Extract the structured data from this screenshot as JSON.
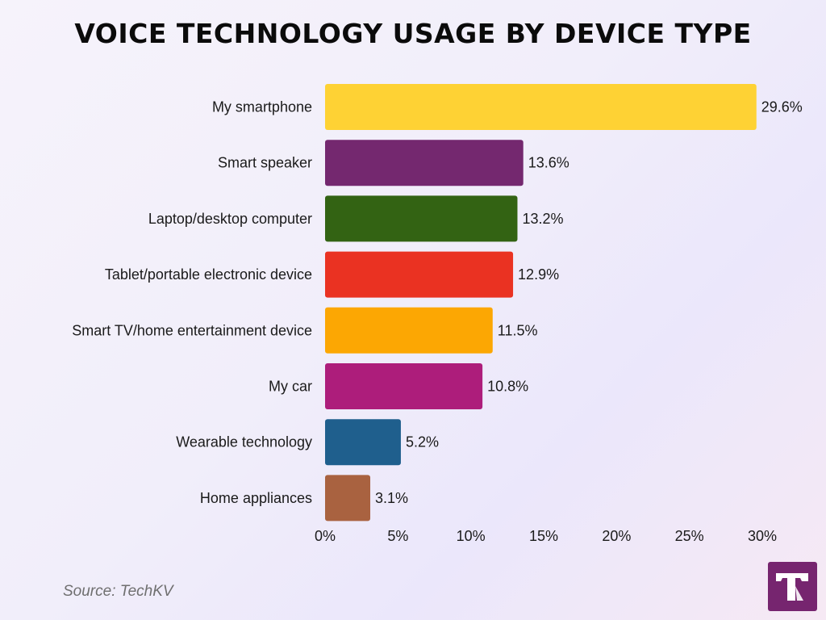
{
  "title": "VOICE TECHNOLOGY USAGE BY DEVICE TYPE",
  "source": "Source: TechKV",
  "chart_data": {
    "type": "bar",
    "orientation": "horizontal",
    "title": "VOICE TECHNOLOGY USAGE BY DEVICE TYPE",
    "categories": [
      "My smartphone",
      "Smart speaker",
      "Laptop/desktop computer",
      "Tablet/portable electronic device",
      "Smart TV/home entertainment device",
      "My car",
      "Wearable technology",
      "Home appliances"
    ],
    "values": [
      29.6,
      13.6,
      13.2,
      12.9,
      11.5,
      10.8,
      5.2,
      3.1
    ],
    "value_labels": [
      "29.6%",
      "13.6%",
      "13.2%",
      "12.9%",
      "11.5%",
      "10.8%",
      "5.2%",
      "3.1%"
    ],
    "colors": [
      "#fed234",
      "#74286f",
      "#336313",
      "#ea3222",
      "#fca703",
      "#ad1d7b",
      "#1f5f8d",
      "#a96240"
    ],
    "xlim": [
      0,
      30
    ],
    "xticks": [
      0,
      5,
      10,
      15,
      20,
      25,
      30
    ],
    "xtick_labels": [
      "0%",
      "5%",
      "10%",
      "15%",
      "20%",
      "25%",
      "30%"
    ],
    "grid": false,
    "legend": "none"
  },
  "logo": {
    "letter": "T",
    "bg_color": "#76256f"
  }
}
